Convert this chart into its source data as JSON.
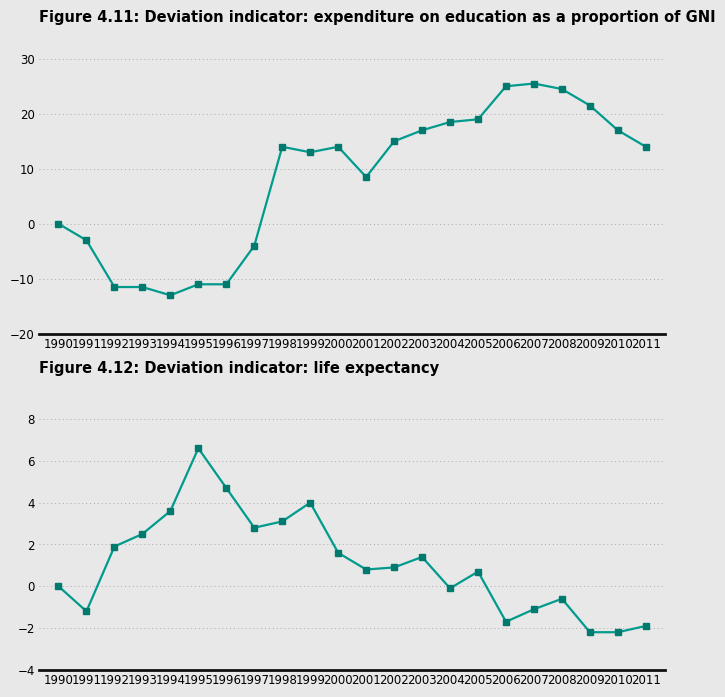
{
  "fig1_title": "Figure 4.11: Deviation indicator: expenditure on education as a proportion of GNI",
  "fig2_title": "Figure 4.12: Deviation indicator: life expectancy",
  "years": [
    1990,
    1991,
    1992,
    1993,
    1994,
    1995,
    1996,
    1997,
    1998,
    1999,
    2000,
    2001,
    2002,
    2003,
    2004,
    2005,
    2006,
    2007,
    2008,
    2009,
    2010,
    2011
  ],
  "fig1_values": [
    0,
    -3,
    -11.5,
    -11.5,
    -13,
    -11,
    -11,
    -4,
    14,
    13,
    14,
    8.5,
    15,
    17,
    18.5,
    19,
    25,
    25.5,
    24.5,
    21.5,
    17,
    14
  ],
  "fig2_values": [
    0,
    -1.2,
    1.9,
    2.5,
    3.6,
    6.6,
    4.7,
    2.8,
    3.1,
    4.0,
    1.6,
    0.8,
    0.9,
    1.4,
    -0.1,
    0.7,
    -1.7,
    -1.1,
    -0.6,
    -2.2,
    -2.2,
    -1.9
  ],
  "line_color": "#009B8D",
  "marker_color": "#007A6E",
  "bg_color": "#E8E8E8",
  "fig1_ylim": [
    -20,
    32
  ],
  "fig1_yticks": [
    -20,
    -10,
    0,
    10,
    20,
    30
  ],
  "fig2_ylim": [
    -4,
    9
  ],
  "fig2_yticks": [
    -4,
    -2,
    0,
    2,
    4,
    6,
    8
  ],
  "title_fontsize": 10.5,
  "tick_fontsize": 8.5,
  "line_width": 1.6,
  "marker_size": 4.5,
  "grid_color": "#aaaaaa",
  "axis_bottom_color": "#111111"
}
